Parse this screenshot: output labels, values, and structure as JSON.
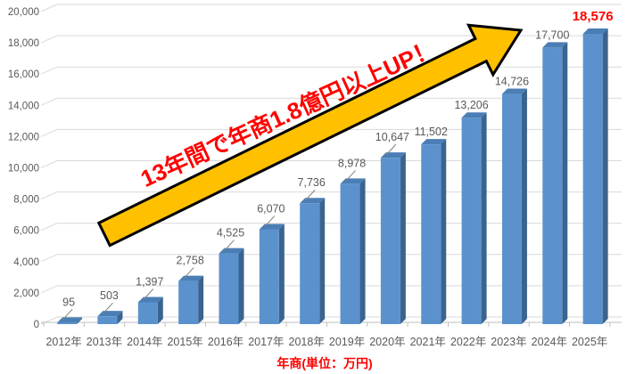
{
  "chart_data": {
    "type": "bar",
    "style": "3d-column",
    "categories": [
      "2012年",
      "2013年",
      "2014年",
      "2015年",
      "2016年",
      "2017年",
      "2018年",
      "2019年",
      "2020年",
      "2021年",
      "2022年",
      "2023年",
      "2024年",
      "2025年"
    ],
    "values": [
      95,
      503,
      1397,
      2758,
      4525,
      6070,
      7736,
      8978,
      10647,
      11502,
      13206,
      14726,
      17700,
      18576
    ],
    "value_labels": [
      "95",
      "503",
      "1,397",
      "2,758",
      "4,525",
      "6,070",
      "7,736",
      "8,978",
      "10,647",
      "11,502",
      "13,206",
      "14,726",
      "17,700",
      "18,576"
    ],
    "highlight_last_index": 13,
    "xlabel": "年商(単位：万円)",
    "ylabel": "",
    "title": "",
    "ylim": [
      0,
      20000
    ],
    "ytick_step": 2000,
    "ytick_labels": [
      "0",
      "2,000",
      "4,000",
      "6,000",
      "8,000",
      "10,000",
      "12,000",
      "14,000",
      "16,000",
      "18,000",
      "20,000"
    ],
    "grid": true,
    "legend": "none",
    "leader_line_max_index": 8,
    "colors": {
      "bar_front": "#5B92CE",
      "bar_side": "#3A648F",
      "bar_top": "#4A7EB5",
      "gridline": "#D9D9D9",
      "axis_line": "#BFBFBF",
      "axis_text": "#595959",
      "data_label": "#595959",
      "highlight_label": "#FF0000",
      "leader_line": "#808080"
    }
  },
  "annotation": {
    "text": "13年間で年商1.8億円以上UP！",
    "text_color": "#FF0000",
    "arrow_fill": "#FFC000",
    "arrow_stroke": "#000000"
  },
  "axis_title": {
    "text": "年商(単位：万円)",
    "color": "#FF0000"
  }
}
